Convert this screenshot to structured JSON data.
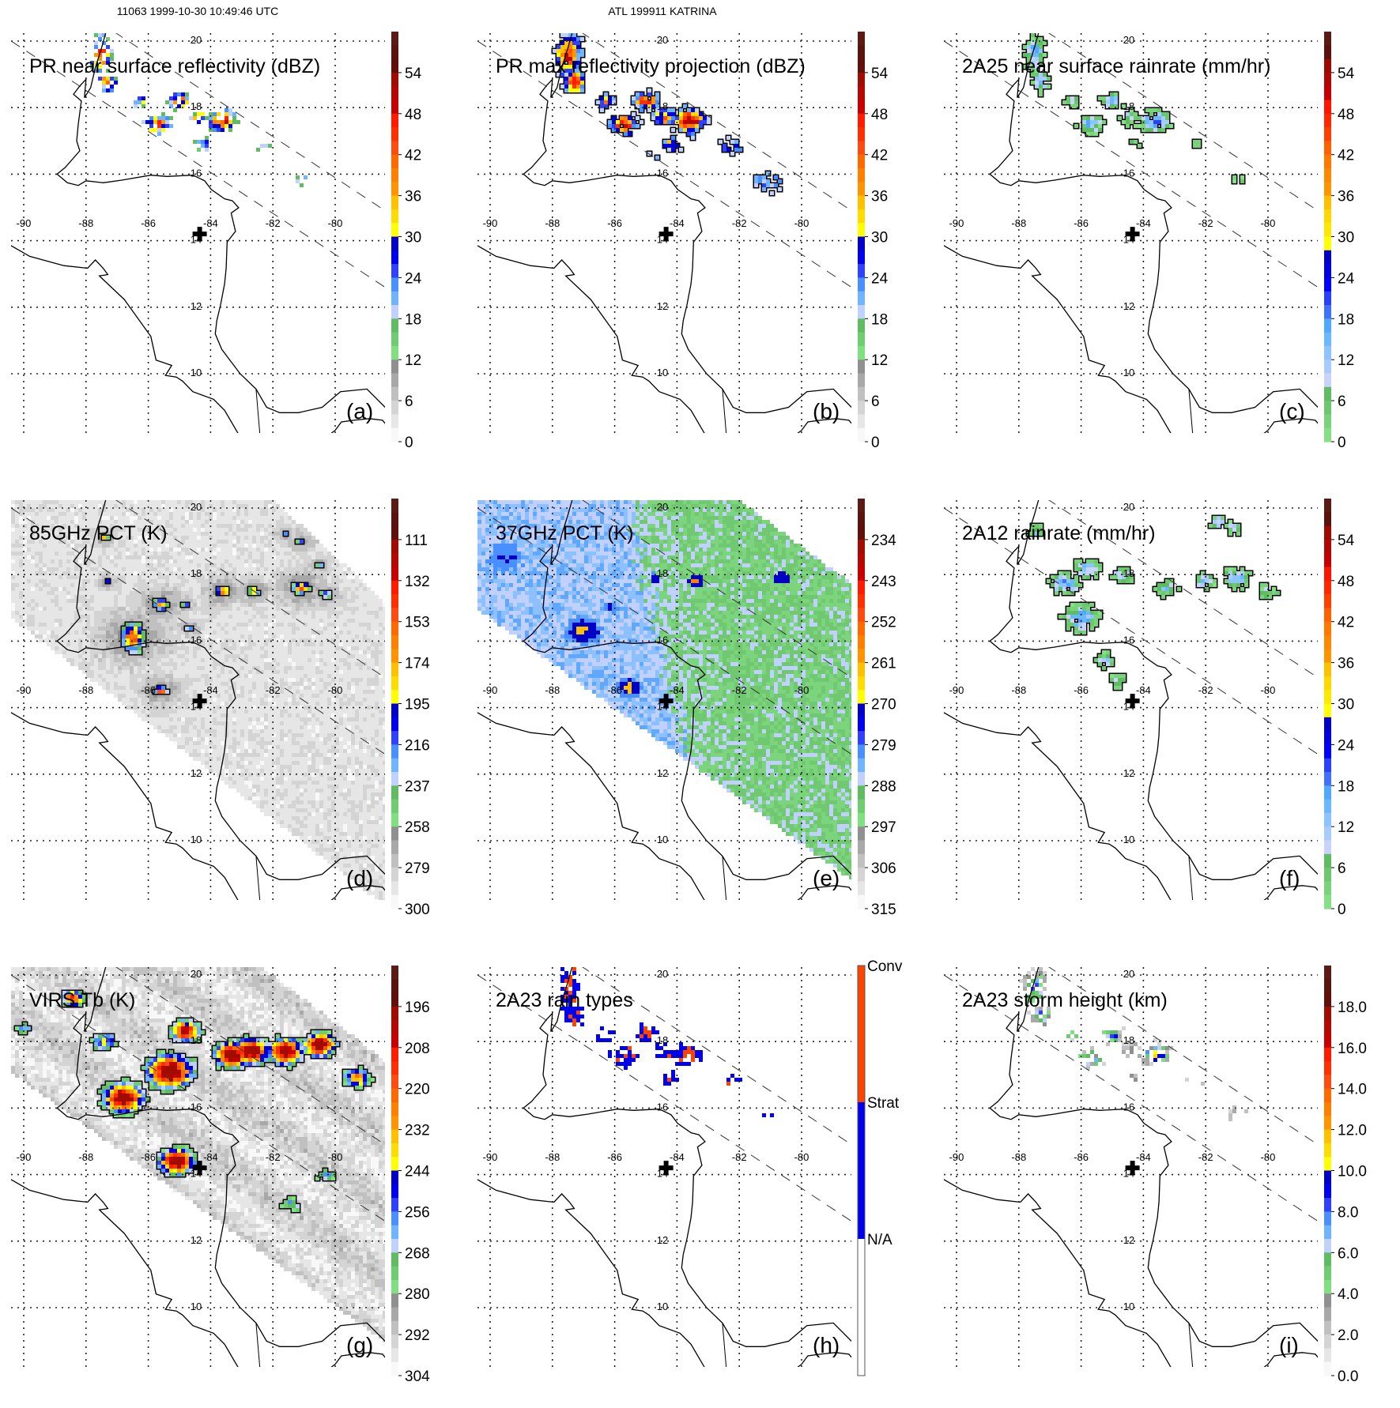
{
  "header": {
    "orbit_time": "11063 1999-10-30 10:49:46 UTC",
    "storm": "ATL 199911 KATRINA"
  },
  "map": {
    "lon_labels": [
      "-90",
      "-88",
      "-86",
      "-84",
      "-82",
      "-80"
    ],
    "lat_labels": [
      "20",
      "18",
      "16",
      "14",
      "12",
      "10"
    ]
  },
  "palettes": {
    "standard": [
      "#5c1a14",
      "#5a140e",
      "#60100a",
      "#a00c00",
      "#b40800",
      "#c80000",
      "#ff1a00",
      "#ff3000",
      "#ff4a10",
      "#ff6a00",
      "#ff8000",
      "#ff9400",
      "#ffc000",
      "#ffdc00",
      "#ffff00",
      "#0000c8",
      "#0000f0",
      "#3040ff",
      "#4890ff",
      "#70b4ff",
      "#c0d0ff",
      "#60bc60",
      "#70cc70",
      "#80e080",
      "#909090",
      "#a8a8a8",
      "#c0c0c0",
      "#d4d4d4",
      "#e6e6e6",
      "#f8f8f8"
    ],
    "rainrate": [
      "#5c1a14",
      "#5a120c",
      "#9c0a00",
      "#b00800",
      "#c40000",
      "#ff1400",
      "#ff2800",
      "#ff4000",
      "#ff6000",
      "#ff7800",
      "#ff8800",
      "#ff9400",
      "#ffc000",
      "#ffd800",
      "#ffe800",
      "#ffff00",
      "#0000c8",
      "#0000e0",
      "#0000ff",
      "#2840ff",
      "#4070ff",
      "#50a8ff",
      "#6ab8ff",
      "#8cc4ff",
      "#a8ccff",
      "#c8d4ff",
      "#60bc60",
      "#6cc86c",
      "#78d478",
      "#84e084"
    ],
    "raintype": [
      "#ff4400",
      "#0000f0",
      "#ffffff"
    ]
  },
  "panels": [
    {
      "letter": "(a)",
      "title": "PR near surface reflectivity (dBZ)",
      "colorbar": {
        "palette": "standard",
        "labels": [
          "54",
          "48",
          "42",
          "36",
          "30",
          "24",
          "18",
          "12",
          "6",
          "0"
        ]
      }
    },
    {
      "letter": "(b)",
      "title": "PR max reflectivity projection (dBZ)",
      "colorbar": {
        "palette": "standard",
        "labels": [
          "54",
          "48",
          "42",
          "36",
          "30",
          "24",
          "18",
          "12",
          "6",
          "0"
        ]
      }
    },
    {
      "letter": "(c)",
      "title": "2A25 near surface rainrate (mm/hr)",
      "colorbar": {
        "palette": "rainrate",
        "labels": [
          "54",
          "48",
          "42",
          "36",
          "30",
          "24",
          "18",
          "12",
          "6",
          "0"
        ]
      }
    },
    {
      "letter": "(d)",
      "title": "85GHz PCT (K)",
      "colorbar": {
        "palette": "standard",
        "labels": [
          "111",
          "132",
          "153",
          "174",
          "195",
          "216",
          "237",
          "258",
          "279",
          "300"
        ]
      }
    },
    {
      "letter": "(e)",
      "title": "37GHz PCT (K)",
      "colorbar": {
        "palette": "standard",
        "labels": [
          "234",
          "243",
          "252",
          "261",
          "270",
          "279",
          "288",
          "297",
          "306",
          "315"
        ]
      }
    },
    {
      "letter": "(f)",
      "title": "2A12 rainrate (mm/hr)",
      "colorbar": {
        "palette": "rainrate",
        "labels": [
          "54",
          "48",
          "42",
          "36",
          "30",
          "24",
          "18",
          "12",
          "6",
          "0"
        ]
      }
    },
    {
      "letter": "(g)",
      "title": "VIRS Tb (K)",
      "colorbar": {
        "palette": "standard",
        "labels": [
          "196",
          "208",
          "220",
          "232",
          "244",
          "256",
          "268",
          "280",
          "292",
          "304"
        ]
      }
    },
    {
      "letter": "(h)",
      "title": "2A23 rain types",
      "colorbar": {
        "palette": "raintype",
        "labels": [
          "Conv",
          "Strat",
          "N/A"
        ]
      }
    },
    {
      "letter": "(i)",
      "title": "2A23 storm height (km)",
      "colorbar": {
        "palette": "standard",
        "labels": [
          "18.0",
          "16.0",
          "14.0",
          "12.0",
          "10.0",
          "8.0",
          "6.0",
          "4.0",
          "2.0",
          "0.0"
        ]
      }
    }
  ]
}
